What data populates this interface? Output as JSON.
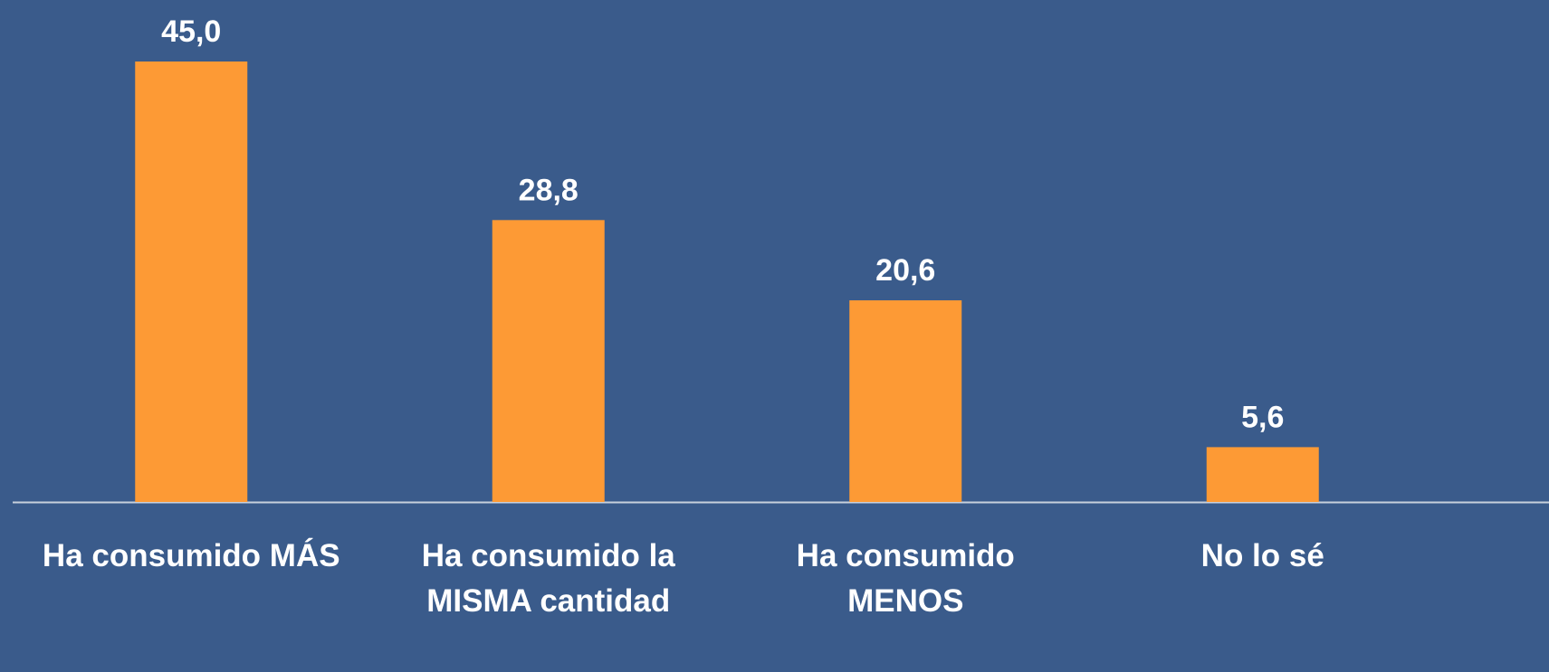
{
  "chart_data": {
    "type": "bar",
    "categories": [
      "Ha consumido MÁS",
      "Ha consumido la MISMA cantidad",
      "Ha consumido MENOS",
      "No lo sé"
    ],
    "values": [
      45.0,
      28.8,
      20.6,
      5.6
    ],
    "value_labels": [
      "45,0",
      "28,8",
      "20,6",
      "5,6"
    ],
    "color": "#fd9a35",
    "ylim": [
      0,
      45
    ]
  }
}
